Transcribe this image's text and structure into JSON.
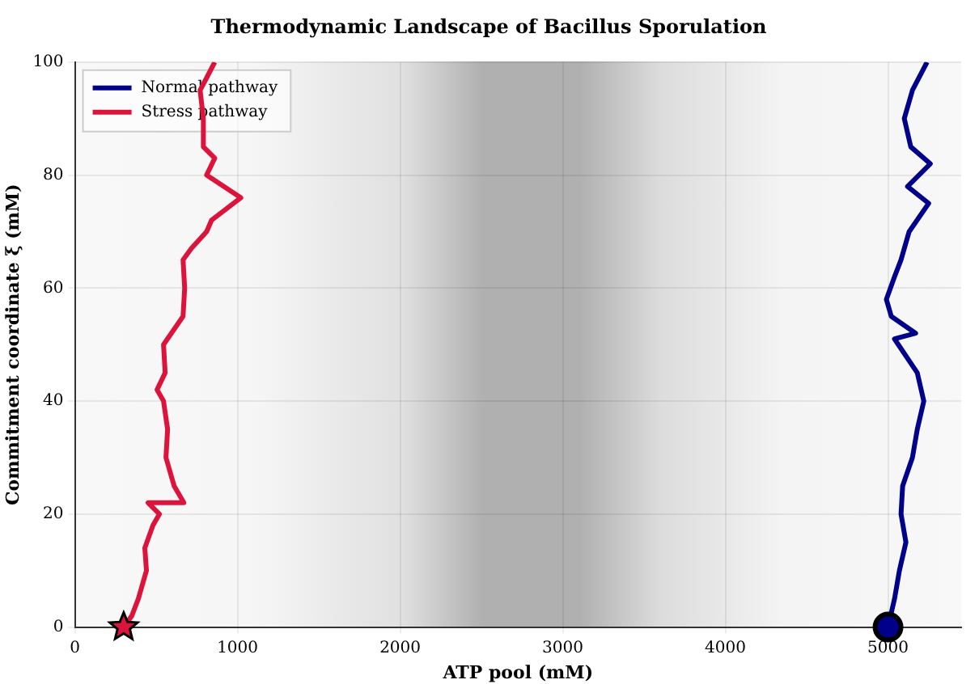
{
  "chart_data": {
    "type": "line",
    "title": "Thermodynamic Landscape of Bacillus Sporulation",
    "xlabel": "ATP pool (mM)",
    "ylabel": "Commitment coordinate ξ (mM)",
    "xlim": [
      0,
      5450
    ],
    "xticks": [
      0,
      1000,
      2000,
      3000,
      4000,
      5000
    ],
    "ylim": [
      0,
      100
    ],
    "yticks": [
      0,
      20,
      40,
      60,
      80,
      100
    ],
    "grid": true,
    "legend": "top left",
    "marker": "none",
    "line_style": "solid",
    "series": [
      {
        "name": "Normal pathway",
        "color": "#00008b",
        "x": [
          5000,
          5040,
          5070,
          5110,
          5080,
          5090,
          5150,
          5180,
          5220,
          5180,
          5040,
          5170,
          5020,
          4990,
          5040,
          5080,
          5130,
          5250,
          5120,
          5260,
          5140,
          5100,
          5150,
          5240
        ],
        "values": [
          0,
          5,
          10,
          15,
          20,
          25,
          30,
          35,
          40,
          45,
          51,
          52,
          55,
          58,
          62,
          65,
          70,
          75,
          78,
          82,
          85,
          90,
          95,
          100
        ]
      },
      {
        "name": "Stress pathway",
        "color": "#dc143c",
        "x": [
          300,
          350,
          390,
          420,
          440,
          430,
          480,
          520,
          450,
          670,
          610,
          560,
          570,
          545,
          505,
          555,
          545,
          665,
          675,
          665,
          715,
          810,
          840,
          1020,
          810,
          860,
          790,
          790,
          770,
          860
        ],
        "values": [
          0,
          2,
          5,
          8,
          10,
          14,
          18,
          20,
          22,
          22,
          25,
          30,
          35,
          40,
          42,
          45,
          50,
          55,
          60,
          65,
          67,
          70,
          72,
          76,
          80,
          83,
          85,
          90,
          95,
          100
        ]
      },
      {
        "type": "scatter",
        "color": "#dc143c",
        "marker": "star",
        "x": [
          300
        ],
        "values": [
          0
        ]
      },
      {
        "type": "scatter",
        "color": "#00008b",
        "marker": "circle",
        "x": [
          5000
        ],
        "values": [
          0
        ]
      }
    ]
  }
}
